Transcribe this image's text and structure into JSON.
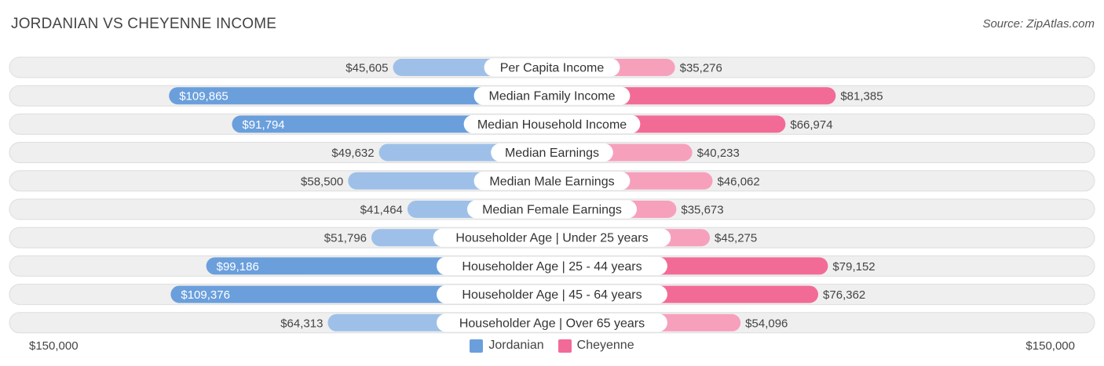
{
  "title": "JORDANIAN VS CHEYENNE INCOME",
  "source": "Source: ZipAtlas.com",
  "colors": {
    "jordanian_strong": "#6a9fdc",
    "jordanian_light": "#9ec0e8",
    "cheyenne_strong": "#f26b96",
    "cheyenne_light": "#f6a0bc",
    "row_bg": "#efefef",
    "row_border": "#dddddd"
  },
  "axis": {
    "left_label": "$150,000",
    "right_label": "$150,000"
  },
  "legend": [
    {
      "name": "Jordanian",
      "color": "#6a9fdc"
    },
    {
      "name": "Cheyenne",
      "color": "#f26b96"
    }
  ],
  "chart_data": {
    "type": "bar",
    "orientation": "diverging-horizontal",
    "max": 150000,
    "categories": [
      "Per Capita Income",
      "Median Family Income",
      "Median Household Income",
      "Median Earnings",
      "Median Male Earnings",
      "Median Female Earnings",
      "Householder Age | Under 25 years",
      "Householder Age | 25 - 44 years",
      "Householder Age | 45 - 64 years",
      "Householder Age | Over 65 years"
    ],
    "series": [
      {
        "name": "Jordanian",
        "values": [
          45605,
          109865,
          91794,
          49632,
          58500,
          41464,
          51796,
          99186,
          109376,
          64313
        ],
        "labels": [
          "$45,605",
          "$109,865",
          "$91,794",
          "$49,632",
          "$58,500",
          "$41,464",
          "$51,796",
          "$99,186",
          "$109,376",
          "$64,313"
        ]
      },
      {
        "name": "Cheyenne",
        "values": [
          35276,
          81385,
          66974,
          40233,
          46062,
          35673,
          45275,
          79152,
          76362,
          54096
        ],
        "labels": [
          "$35,276",
          "$81,385",
          "$66,974",
          "$40,233",
          "$46,062",
          "$35,673",
          "$45,275",
          "$79,152",
          "$76,362",
          "$54,096"
        ]
      }
    ]
  }
}
